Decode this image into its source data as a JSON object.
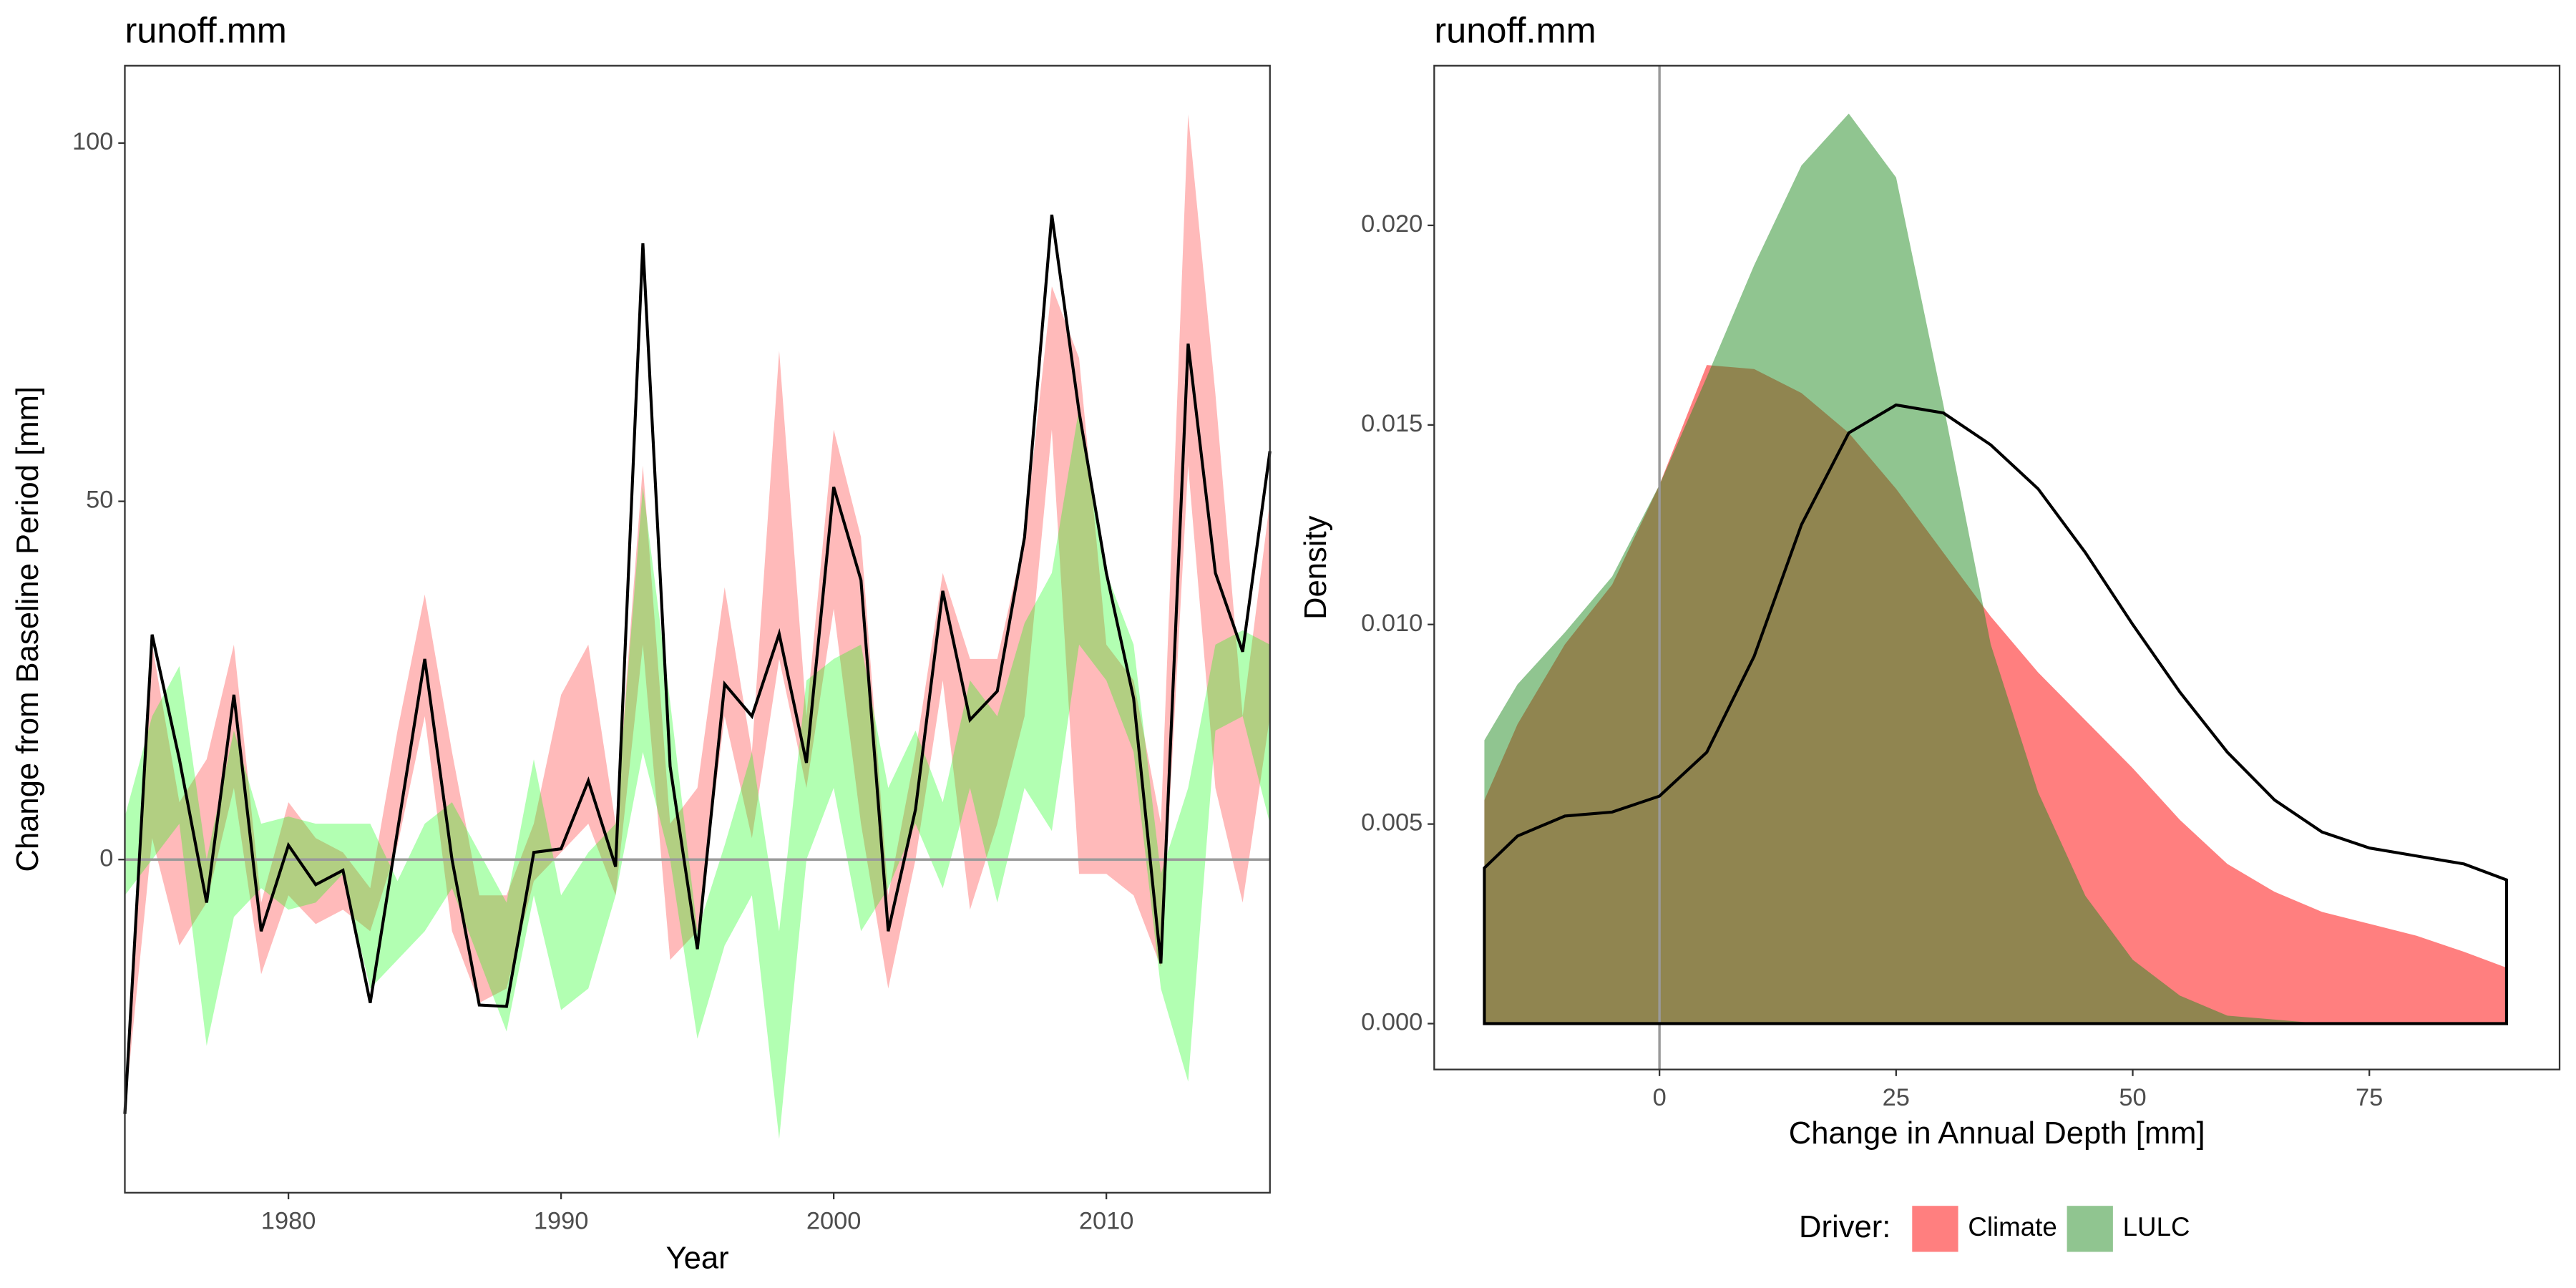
{
  "chart_data": [
    {
      "type": "line",
      "title": "runoff.mm",
      "x_label": "Year",
      "y_label": "Change from Baseline Period [mm]",
      "x": [
        1974,
        1975,
        1976,
        1977,
        1978,
        1979,
        1980,
        1981,
        1982,
        1983,
        1984,
        1985,
        1986,
        1987,
        1988,
        1989,
        1990,
        1991,
        1992,
        1993,
        1994,
        1995,
        1996,
        1997,
        1998,
        1999,
        2000,
        2001,
        2002,
        2003,
        2004,
        2005,
        2006,
        2007,
        2008,
        2009,
        2010,
        2011,
        2012,
        2013,
        2014,
        2015,
        2016
      ],
      "bands": [
        {
          "color": "#ff0000",
          "opacity": 0.27,
          "lower": [
            -35,
            3,
            -12,
            -6,
            10,
            -16,
            -5,
            -9,
            -7,
            -10,
            2,
            20,
            -10,
            -20,
            -18,
            -3,
            1,
            5,
            -5,
            30,
            -14,
            -10,
            20,
            3,
            28,
            10,
            35,
            5,
            -18,
            0,
            25,
            -7,
            5,
            20,
            60,
            -2,
            -2,
            -5,
            -15,
            55,
            10,
            -6,
            20
          ],
          "upper": [
            -33,
            30,
            8,
            14,
            30,
            -6,
            8,
            3,
            1,
            -4,
            18,
            37,
            15,
            -5,
            -5,
            5,
            23,
            30,
            5,
            55,
            5,
            10,
            38,
            15,
            71,
            20,
            60,
            45,
            -5,
            15,
            40,
            28,
            28,
            45,
            80,
            70,
            30,
            25,
            5,
            104,
            65,
            20,
            50
          ]
        },
        {
          "color": "#00ff00",
          "opacity": 0.3,
          "lower": [
            -5,
            0,
            5,
            -26,
            -8,
            -4,
            -7,
            -6,
            -2,
            -18,
            -14,
            -10,
            -4,
            -14,
            -24,
            -5,
            -21,
            -18,
            -5,
            15,
            0,
            -25,
            -12,
            -5,
            -39,
            0,
            10,
            -10,
            -4,
            5,
            -4,
            10,
            -6,
            10,
            4,
            30,
            25,
            15,
            -18,
            -31,
            18,
            20,
            5
          ],
          "upper": [
            6,
            20,
            27,
            0,
            18,
            5,
            6,
            5,
            5,
            5,
            -3,
            5,
            8,
            1,
            -6,
            14,
            -5,
            1,
            5,
            52,
            22,
            -10,
            2,
            15,
            -10,
            25,
            28,
            30,
            10,
            18,
            8,
            25,
            20,
            33,
            40,
            63,
            40,
            30,
            -2,
            10,
            30,
            32,
            30
          ]
        }
      ],
      "series": [
        {
          "color": "#000000",
          "values": [
            -35.5,
            31.4,
            14,
            -6,
            23,
            -10,
            2,
            -3.5,
            -1.5,
            -20,
            4,
            28,
            0,
            -20.3,
            -20.5,
            1,
            1.5,
            11,
            -1,
            86,
            13,
            -12.5,
            24.5,
            20,
            31.5,
            13.5,
            52,
            39,
            -10,
            7,
            37.5,
            19.5,
            23.5,
            45,
            90,
            62.5,
            40,
            22.5,
            -14.5,
            72,
            40,
            29,
            57
          ]
        }
      ],
      "hline": 0,
      "xlim": [
        1974,
        2016
      ],
      "xticks": [
        1980,
        1990,
        2000,
        2010
      ],
      "ylim": [
        -46.5,
        110.8
      ],
      "yticks": [
        0,
        50,
        100
      ],
      "grid": false
    },
    {
      "type": "area",
      "title": "runoff.mm",
      "x_label": "Change in Annual Depth [mm]",
      "y_label": "Density",
      "x": [
        -18.5,
        -15,
        -10,
        -5,
        0,
        5,
        10,
        15,
        20,
        25,
        30,
        35,
        40,
        45,
        50,
        55,
        60,
        65,
        70,
        75,
        80,
        85,
        89.5
      ],
      "series": [
        {
          "name": "Climate",
          "color": "#ff0000",
          "opacity": 0.5,
          "values": [
            0.0056,
            0.0075,
            0.0095,
            0.011,
            0.0135,
            0.0165,
            0.0164,
            0.0158,
            0.0148,
            0.0134,
            0.0118,
            0.0102,
            0.0088,
            0.0076,
            0.0064,
            0.0051,
            0.004,
            0.0033,
            0.0028,
            0.0025,
            0.0022,
            0.0018,
            0.0014
          ]
        },
        {
          "name": "LULC",
          "color": "#228b22",
          "opacity": 0.5,
          "values": [
            0.0071,
            0.0085,
            0.0098,
            0.0112,
            0.0135,
            0.0162,
            0.019,
            0.0215,
            0.0228,
            0.0212,
            0.0155,
            0.0095,
            0.0058,
            0.0032,
            0.0016,
            0.0007,
            0.0002,
            0.0001,
            0,
            0,
            0,
            0,
            0
          ]
        },
        {
          "color": "#000000",
          "fill": "none",
          "values": [
            0.0039,
            0.0047,
            0.0052,
            0.0053,
            0.0057,
            0.0068,
            0.0092,
            0.0125,
            0.0148,
            0.0155,
            0.0153,
            0.0145,
            0.0134,
            0.0118,
            0.01,
            0.0083,
            0.0068,
            0.0056,
            0.0048,
            0.0044,
            0.0042,
            0.004,
            0.0036
          ]
        }
      ],
      "vline": 0,
      "xlim": [
        -23.8,
        95.1
      ],
      "xticks": [
        0,
        25,
        50,
        75
      ],
      "ylim": [
        -0.00115,
        0.024
      ],
      "yticks": [
        {
          "value": 0,
          "label": "0.000"
        },
        {
          "value": 0.005,
          "label": "0.005"
        },
        {
          "value": 0.01,
          "label": "0.010"
        },
        {
          "value": 0.015,
          "label": "0.015"
        },
        {
          "value": 0.02,
          "label": "0.020"
        }
      ],
      "grid": false,
      "legend": "bottom",
      "legend_title": "Driver:"
    }
  ]
}
